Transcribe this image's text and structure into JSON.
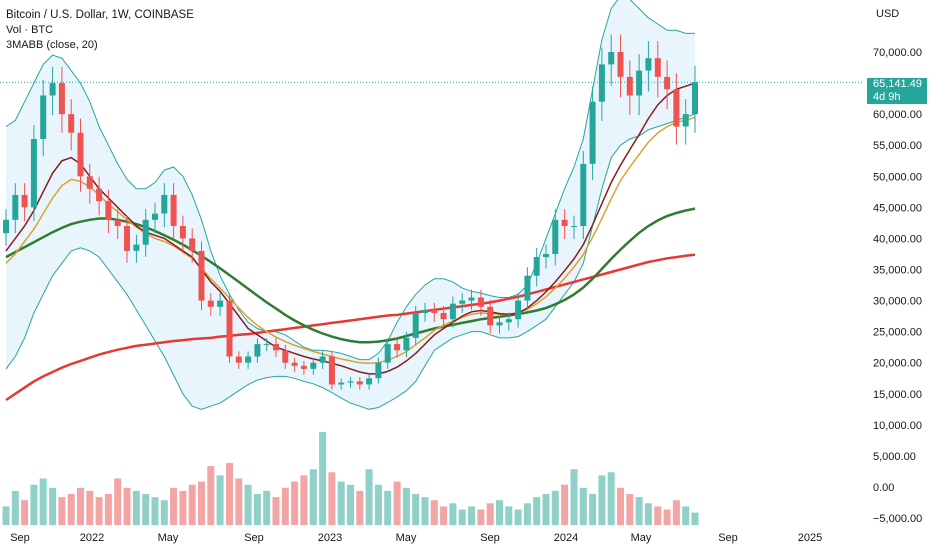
{
  "legend": {
    "title": "Bitcoin / U.S. Dollar, 1W, COINBASE",
    "volume": "Vol · BTC",
    "indicator": "3MABB (close, 20)"
  },
  "currency": "USD",
  "last_price": {
    "value": "65,141.49",
    "countdown": "4d 9h"
  },
  "colors": {
    "up": "#26a69a",
    "down": "#ef5350",
    "vol_up": "#8fd1c9",
    "vol_down": "#f3a5a5",
    "band_fill": "#e3f2fd",
    "band_line": "#26a69a",
    "ma20_basis": "#8b1a1a",
    "ma20_alt": "#e0a030",
    "ma50": "#2e7d32",
    "ma200": "#e53935"
  },
  "chart_data": {
    "type": "candlestick",
    "interval": "1W",
    "y_axis": {
      "ticks": [
        "70,000.00",
        "65,000.00",
        "60,000.00",
        "55,000.00",
        "50,000.00",
        "45,000.00",
        "40,000.00",
        "35,000.00",
        "30,000.00",
        "25,000.00",
        "20,000.00",
        "15,000.00",
        "10,000.00",
        "5,000.00",
        "0.00",
        "−5,000.00"
      ],
      "range": [
        -7000,
        78000
      ]
    },
    "x_axis": {
      "ticks": [
        "Sep",
        "2022",
        "May",
        "Sep",
        "2023",
        "May",
        "Sep",
        "2024",
        "May",
        "Sep",
        "2025"
      ]
    },
    "last_price": 65141.49,
    "price_path": [
      43000,
      47000,
      45000,
      56000,
      63000,
      65000,
      60000,
      57000,
      50000,
      48000,
      46000,
      43000,
      42000,
      38000,
      39000,
      43000,
      44000,
      47000,
      42000,
      40000,
      38000,
      30000,
      29000,
      30000,
      21000,
      20000,
      21000,
      23000,
      23000,
      22000,
      20000,
      19500,
      19000,
      20000,
      21000,
      16500,
      16800,
      17000,
      16500,
      17500,
      20000,
      23000,
      22000,
      24000,
      28000,
      28500,
      28000,
      27000,
      29500,
      30000,
      30500,
      29000,
      26000,
      26500,
      27000,
      30000,
      34000,
      37000,
      37500,
      43000,
      42000,
      42000,
      52000,
      62000,
      68000,
      70000,
      66000,
      63000,
      67000,
      69000,
      66000,
      64000,
      58000,
      60000,
      65141.49
    ],
    "ma20": [
      38000,
      40000,
      42000,
      44500,
      47500,
      50500,
      52500,
      53000,
      52000,
      50000,
      48000,
      46500,
      45000,
      43500,
      42000,
      41000,
      40500,
      40000,
      39000,
      38000,
      37000,
      35000,
      33000,
      31500,
      29500,
      27500,
      25500,
      24500,
      23500,
      22500,
      22000,
      21500,
      21000,
      20600,
      20300,
      19900,
      19500,
      19000,
      18500,
      18200,
      18200,
      18600,
      19300,
      20300,
      21500,
      23000,
      24500,
      25500,
      26500,
      27500,
      28200,
      28400,
      28200,
      27900,
      27800,
      28000,
      28800,
      30000,
      31400,
      33000,
      34800,
      36700,
      39000,
      42200,
      45600,
      49000,
      51800,
      54300,
      56700,
      59300,
      61500,
      63000,
      64000,
      64500,
      65000
    ],
    "ma20_alt": [
      36000,
      37500,
      39500,
      41500,
      44000,
      46500,
      48500,
      49500,
      49200,
      48300,
      47000,
      45500,
      44300,
      43000,
      41800,
      40800,
      40000,
      39500,
      38800,
      37800,
      36800,
      35200,
      33500,
      32000,
      30400,
      28800,
      27300,
      26000,
      25000,
      24100,
      23400,
      22800,
      22300,
      21800,
      21400,
      21000,
      20600,
      20300,
      20000,
      19900,
      20000,
      20400,
      21000,
      21800,
      22900,
      24000,
      25200,
      26000,
      26700,
      27300,
      27800,
      28000,
      27900,
      27800,
      27800,
      28000,
      28600,
      29500,
      30600,
      32000,
      33600,
      35400,
      37400,
      40200,
      43200,
      46400,
      49300,
      51500,
      53500,
      55500,
      57000,
      58000,
      58700,
      59000,
      59500
    ],
    "ma50": [
      37000,
      37800,
      38600,
      39400,
      40200,
      41000,
      41700,
      42300,
      42700,
      43000,
      43200,
      43200,
      43000,
      42700,
      42300,
      41800,
      41200,
      40500,
      39800,
      39000,
      38100,
      37200,
      36200,
      35200,
      34100,
      33000,
      31900,
      30800,
      29700,
      28700,
      27700,
      26800,
      26000,
      25300,
      24700,
      24200,
      23800,
      23500,
      23300,
      23300,
      23400,
      23600,
      23900,
      24300,
      24700,
      25100,
      25500,
      25800,
      26100,
      26400,
      26700,
      27000,
      27200,
      27400,
      27600,
      27800,
      28100,
      28400,
      28800,
      29400,
      30100,
      31000,
      32100,
      33500,
      35100,
      36700,
      38200,
      39600,
      40900,
      42000,
      42900,
      43600,
      44100,
      44500,
      44800
    ],
    "ma200": [
      14000,
      15000,
      16000,
      17000,
      17800,
      18500,
      19200,
      19800,
      20300,
      20800,
      21300,
      21700,
      22100,
      22400,
      22700,
      22900,
      23100,
      23300,
      23500,
      23600,
      23800,
      23900,
      24000,
      24200,
      24300,
      24500,
      24600,
      24800,
      25000,
      25200,
      25400,
      25600,
      25800,
      26000,
      26200,
      26400,
      26600,
      26800,
      27000,
      27200,
      27400,
      27600,
      27700,
      27900,
      28100,
      28300,
      28500,
      28700,
      28900,
      29100,
      29300,
      29500,
      29700,
      30000,
      30300,
      30600,
      31000,
      31400,
      31800,
      32200,
      32600,
      33000,
      33400,
      33800,
      34200,
      34600,
      35000,
      35400,
      35800,
      36200,
      36500,
      36800,
      37000,
      37200,
      37400
    ],
    "band_upper": [
      58000,
      59000,
      62000,
      65000,
      68000,
      69500,
      69000,
      67000,
      65000,
      62000,
      58000,
      55000,
      52000,
      49500,
      48000,
      48000,
      49000,
      51000,
      51500,
      50000,
      47000,
      43000,
      38000,
      34000,
      31000,
      28500,
      26500,
      25500,
      25000,
      25000,
      24500,
      23500,
      22500,
      22000,
      22000,
      21800,
      21500,
      21000,
      20500,
      20500,
      21500,
      23500,
      26500,
      29000,
      31000,
      32500,
      33500,
      33500,
      33000,
      32000,
      31500,
      31200,
      30800,
      30500,
      30500,
      31000,
      32500,
      36000,
      40000,
      44000,
      48000,
      51500,
      56000,
      64000,
      72000,
      77000,
      79000,
      78500,
      77000,
      75500,
      74500,
      73500,
      73500,
      73000,
      73000
    ],
    "band_lower": [
      19000,
      21000,
      24000,
      28000,
      31000,
      34000,
      36000,
      38000,
      38500,
      38000,
      37000,
      35000,
      33000,
      31000,
      28500,
      26000,
      23500,
      21000,
      18000,
      15000,
      13000,
      12500,
      13000,
      13500,
      14500,
      15500,
      16500,
      17200,
      17600,
      17800,
      17800,
      17500,
      17000,
      16600,
      16000,
      15200,
      14300,
      13500,
      13000,
      12500,
      12800,
      13600,
      14500,
      15500,
      17000,
      19500,
      22000,
      23000,
      24000,
      24500,
      25000,
      25000,
      24500,
      24000,
      24000,
      24200,
      25000,
      26000,
      27000,
      29000,
      31000,
      33000,
      36000,
      42000,
      48000,
      53000,
      55000,
      56000,
      56500,
      57500,
      58000,
      58500,
      59000,
      59500,
      60000
    ],
    "volume": [
      3000,
      5500,
      4000,
      6500,
      7500,
      6000,
      4500,
      5000,
      6000,
      5500,
      4500,
      5000,
      7500,
      6000,
      5500,
      5000,
      4500,
      4000,
      6000,
      5500,
      6500,
      7000,
      9500,
      8000,
      10000,
      7500,
      6500,
      5000,
      5500,
      4500,
      6000,
      7000,
      8000,
      9000,
      15000,
      8500,
      7000,
      6500,
      5500,
      9000,
      6500,
      5500,
      7000,
      6000,
      5000,
      4500,
      4000,
      3000,
      3500,
      2500,
      3000,
      2500,
      3500,
      4000,
      3000,
      2500,
      3500,
      4500,
      5000,
      5500,
      6500,
      9000,
      6000,
      5000,
      8000,
      8500,
      6000,
      5000,
      4500,
      3500,
      3000,
      2500,
      4000,
      3000,
      2000
    ]
  }
}
